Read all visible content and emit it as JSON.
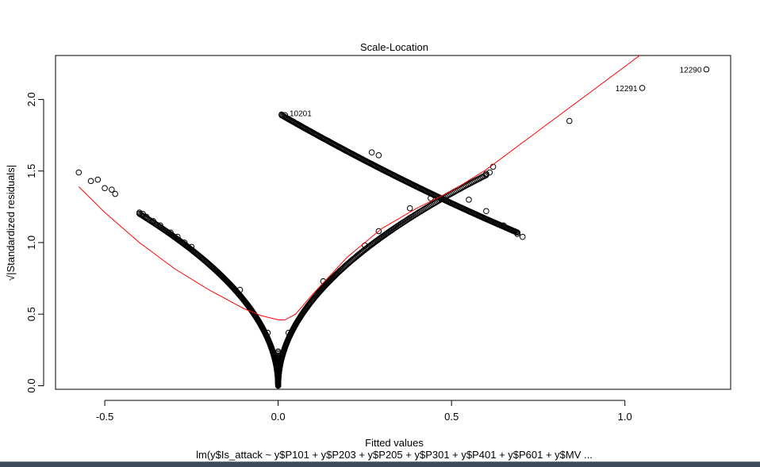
{
  "chart_data": {
    "type": "scatter",
    "title": "Scale-Location",
    "xlabel": "Fitted values",
    "subtitle": "lm(y$Is_attack ~ y$P101 + y$P203 + y$P205 + y$P301 + y$P401 + y$P601 + y$MV ...",
    "ylabel": "√|Standardized residuals|",
    "xlim": [
      -0.642,
      1.305
    ],
    "ylim": [
      -0.025,
      2.307
    ],
    "x_ticks": [
      -0.5,
      0.0,
      0.5,
      1.0
    ],
    "x_tick_labels": [
      "-0.5",
      "0.0",
      "0.5",
      "1.0"
    ],
    "y_ticks": [
      0.0,
      0.5,
      1.0,
      1.5,
      2.0
    ],
    "y_tick_labels": [
      "0.0",
      "0.5",
      "1.0",
      "1.5",
      "2.0"
    ],
    "grid": false,
    "point_color": "#000000",
    "smooth_color": "#ff0000",
    "points": [
      {
        "x": -0.575,
        "y": 1.49
      },
      {
        "x": -0.54,
        "y": 1.43
      },
      {
        "x": -0.52,
        "y": 1.44
      },
      {
        "x": -0.5,
        "y": 1.38
      },
      {
        "x": -0.48,
        "y": 1.37
      },
      {
        "x": -0.47,
        "y": 1.34
      },
      {
        "x": -0.4,
        "y": 1.21
      },
      {
        "x": -0.39,
        "y": 1.2
      },
      {
        "x": -0.38,
        "y": 1.18
      },
      {
        "x": -0.36,
        "y": 1.15
      },
      {
        "x": -0.34,
        "y": 1.12
      },
      {
        "x": -0.31,
        "y": 1.07
      },
      {
        "x": -0.29,
        "y": 1.04
      },
      {
        "x": -0.27,
        "y": 1.0
      },
      {
        "x": -0.25,
        "y": 0.97
      },
      {
        "x": -0.11,
        "y": 0.67
      },
      {
        "x": -0.03,
        "y": 0.37
      },
      {
        "x": 0.03,
        "y": 0.37
      },
      {
        "x": 0.13,
        "y": 0.73
      },
      {
        "x": 0.25,
        "y": 0.98
      },
      {
        "x": 0.29,
        "y": 1.08
      },
      {
        "x": 0.38,
        "y": 1.24
      },
      {
        "x": 0.44,
        "y": 1.31
      },
      {
        "x": 0.6,
        "y": 1.48
      },
      {
        "x": 0.61,
        "y": 1.49
      },
      {
        "x": 0.62,
        "y": 1.53
      },
      {
        "x": 0.55,
        "y": 1.3
      },
      {
        "x": 0.6,
        "y": 1.22
      },
      {
        "x": 0.65,
        "y": 1.12
      },
      {
        "x": 0.68,
        "y": 1.08
      },
      {
        "x": 0.69,
        "y": 1.06
      },
      {
        "x": 0.705,
        "y": 1.04
      },
      {
        "x": 0.27,
        "y": 1.63
      },
      {
        "x": 0.29,
        "y": 1.61
      },
      {
        "x": 0.84,
        "y": 1.85
      },
      {
        "x": 0.01,
        "y": 1.895
      },
      {
        "x": 0.02,
        "y": 1.89
      },
      {
        "x": 1.05,
        "y": 2.08
      },
      {
        "x": 1.235,
        "y": 2.21
      }
    ],
    "dense_curves": [
      {
        "name": "left-branch",
        "x_range": [
          -0.4,
          0.0
        ],
        "formula": "sqrt(|x|)*1.9"
      },
      {
        "name": "right-branch",
        "x_range": [
          0.0,
          0.6
        ],
        "formula": "sqrt(x)*1.9"
      },
      {
        "name": "upper-descending",
        "x_range": [
          0.01,
          0.69
        ],
        "y_range": [
          1.89,
          1.07
        ]
      }
    ],
    "smooth_line": {
      "x": [
        -0.575,
        -0.5,
        -0.4,
        -0.3,
        -0.2,
        -0.1,
        -0.05,
        0.0,
        0.02,
        0.05,
        0.1,
        0.2,
        0.3,
        0.4,
        0.5,
        0.6,
        0.7,
        0.8,
        0.9,
        1.0,
        1.1
      ],
      "y": [
        1.39,
        1.21,
        1.0,
        0.82,
        0.67,
        0.54,
        0.49,
        0.46,
        0.46,
        0.5,
        0.64,
        0.9,
        1.1,
        1.24,
        1.36,
        1.51,
        1.69,
        1.87,
        2.05,
        2.23,
        2.41
      ]
    },
    "annotations": [
      {
        "label": "10201",
        "x": 0.01,
        "y": 1.895
      },
      {
        "label": "12291",
        "x": 1.05,
        "y": 2.08
      },
      {
        "label": "12290",
        "x": 1.235,
        "y": 2.21
      }
    ]
  }
}
